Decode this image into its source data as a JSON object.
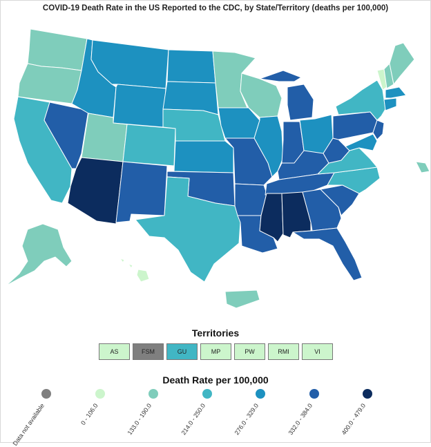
{
  "title": "COVID-19 Death Rate in the US Reported to the CDC, by State/Territory (deaths per 100,000)",
  "territories": {
    "title": "Territories",
    "items": [
      {
        "label": "AS",
        "color": "#ccf5cc"
      },
      {
        "label": "FSM",
        "color": "#7f7f7f"
      },
      {
        "label": "GU",
        "color": "#41b6c4"
      },
      {
        "label": "MP",
        "color": "#ccf5cc"
      },
      {
        "label": "PW",
        "color": "#ccf5cc"
      },
      {
        "label": "RMI",
        "color": "#ccf5cc"
      },
      {
        "label": "VI",
        "color": "#ccf5cc"
      }
    ]
  },
  "legend": {
    "title": "Death Rate per 100,000",
    "items": [
      {
        "label": "Data not available",
        "color": "#7f7f7f"
      },
      {
        "label": "0 - 106.0",
        "color": "#ccf5cc"
      },
      {
        "label": "133.0 - 190.0",
        "color": "#7fcdbb"
      },
      {
        "label": "214.0 - 250.0",
        "color": "#41b6c4"
      },
      {
        "label": "276.0 - 329.0",
        "color": "#1d91c0"
      },
      {
        "label": "332.0 - 384.0",
        "color": "#225ea8"
      },
      {
        "label": "400.0 - 479.0",
        "color": "#0c2c5e"
      }
    ]
  }
}
